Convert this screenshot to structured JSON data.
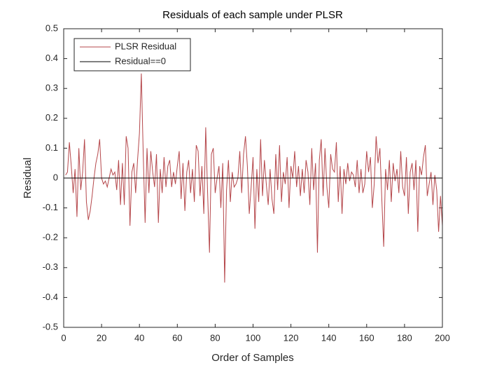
{
  "chart_data": {
    "type": "line",
    "title": "Residuals of each sample under PLSR",
    "xlabel": "Order of Samples",
    "ylabel": "Residual",
    "xlim": [
      0,
      200
    ],
    "xticks": [
      0,
      20,
      40,
      60,
      80,
      100,
      120,
      140,
      160,
      180,
      200
    ],
    "ylim": [
      -0.5,
      0.5
    ],
    "yticks": [
      -0.5,
      -0.4,
      -0.3,
      -0.2,
      -0.1,
      0,
      0.1,
      0.2,
      0.3,
      0.4,
      0.5
    ],
    "legend": "northwest",
    "series": [
      {
        "name": "PLSR Residual",
        "color": "#b5474b",
        "x": [
          1,
          2,
          3,
          4,
          5,
          6,
          7,
          8,
          9,
          10,
          11,
          12,
          13,
          14,
          15,
          16,
          17,
          18,
          19,
          20,
          21,
          22,
          23,
          24,
          25,
          26,
          27,
          28,
          29,
          30,
          31,
          32,
          33,
          34,
          35,
          36,
          37,
          38,
          39,
          40,
          41,
          42,
          43,
          44,
          45,
          46,
          47,
          48,
          49,
          50,
          51,
          52,
          53,
          54,
          55,
          56,
          57,
          58,
          59,
          60,
          61,
          62,
          63,
          64,
          65,
          66,
          67,
          68,
          69,
          70,
          71,
          72,
          73,
          74,
          75,
          76,
          77,
          78,
          79,
          80,
          81,
          82,
          83,
          84,
          85,
          86,
          87,
          88,
          89,
          90,
          91,
          92,
          93,
          94,
          95,
          96,
          97,
          98,
          99,
          100,
          101,
          102,
          103,
          104,
          105,
          106,
          107,
          108,
          109,
          110,
          111,
          112,
          113,
          114,
          115,
          116,
          117,
          118,
          119,
          120,
          121,
          122,
          123,
          124,
          125,
          126,
          127,
          128,
          129,
          130,
          131,
          132,
          133,
          134,
          135,
          136,
          137,
          138,
          139,
          140,
          141,
          142,
          143,
          144,
          145,
          146,
          147,
          148,
          149,
          150,
          151,
          152,
          153,
          154,
          155,
          156,
          157,
          158,
          159,
          160,
          161,
          162,
          163,
          164,
          165,
          166,
          167,
          168,
          169,
          170,
          171,
          172,
          173,
          174,
          175,
          176,
          177,
          178,
          179,
          180,
          181,
          182,
          183,
          184,
          185,
          186,
          187,
          188,
          189,
          190,
          191,
          192,
          193,
          194,
          195,
          196,
          197,
          198,
          199,
          200
        ],
        "values": [
          0.01,
          0.02,
          0.12,
          0.04,
          -0.05,
          0.03,
          -0.13,
          0.1,
          -0.04,
          0.02,
          0.13,
          -0.08,
          -0.14,
          -0.11,
          -0.06,
          0.0,
          0.05,
          0.08,
          0.13,
          0.0,
          -0.02,
          -0.01,
          -0.03,
          0.0,
          0.03,
          0.01,
          0.02,
          -0.04,
          0.06,
          -0.09,
          0.05,
          -0.09,
          0.14,
          0.1,
          -0.16,
          0.02,
          0.05,
          -0.05,
          0.06,
          0.15,
          0.35,
          0.08,
          -0.15,
          0.1,
          -0.05,
          0.09,
          0.02,
          -0.03,
          0.08,
          -0.15,
          0.03,
          -0.05,
          0.07,
          -0.03,
          0.04,
          0.06,
          -0.03,
          0.02,
          -0.02,
          0.04,
          0.09,
          -0.07,
          0.05,
          -0.11,
          0.02,
          0.06,
          -0.05,
          0.03,
          -0.08,
          0.11,
          0.09,
          -0.06,
          0.04,
          -0.12,
          0.17,
          -0.05,
          -0.25,
          0.08,
          0.1,
          -0.05,
          0.0,
          0.04,
          -0.1,
          0.05,
          -0.35,
          -0.04,
          0.06,
          -0.08,
          0.02,
          -0.03,
          -0.02,
          0.0,
          0.09,
          -0.05,
          0.08,
          0.14,
          0.04,
          -0.12,
          -0.03,
          0.07,
          -0.17,
          0.03,
          -0.08,
          0.13,
          -0.06,
          0.06,
          -0.02,
          -0.09,
          0.03,
          -0.07,
          -0.12,
          0.08,
          -0.04,
          0.11,
          -0.08,
          0.02,
          -0.02,
          0.07,
          -0.1,
          0.04,
          0.0,
          0.09,
          -0.03,
          0.04,
          -0.06,
          0.03,
          -0.05,
          0.06,
          0.02,
          -0.09,
          0.1,
          -0.04,
          0.05,
          -0.25,
          0.06,
          0.13,
          -0.06,
          0.1,
          -0.03,
          -0.1,
          0.08,
          0.03,
          0.02,
          0.12,
          -0.08,
          0.04,
          -0.12,
          0.03,
          -0.02,
          0.05,
          -0.01,
          0.02,
          0.01,
          -0.03,
          0.06,
          -0.05,
          0.03,
          -0.05,
          -0.02,
          0.09,
          0.02,
          0.07,
          -0.1,
          -0.02,
          0.14,
          0.05,
          0.1,
          -0.07,
          -0.23,
          0.03,
          -0.04,
          0.06,
          -0.08,
          0.05,
          -0.01,
          0.03,
          -0.05,
          0.09,
          -0.03,
          -0.06,
          0.07,
          -0.12,
          0.02,
          0.05,
          -0.04,
          0.06,
          -0.18,
          0.04,
          0.01,
          0.07,
          0.11,
          -0.06,
          -0.02,
          0.02,
          -0.09,
          0.01,
          -0.04,
          -0.18,
          -0.06,
          -0.16
        ]
      },
      {
        "name": "Residual==0",
        "color": "#000000",
        "x": [
          0,
          200
        ],
        "values": [
          0,
          0
        ]
      }
    ]
  }
}
